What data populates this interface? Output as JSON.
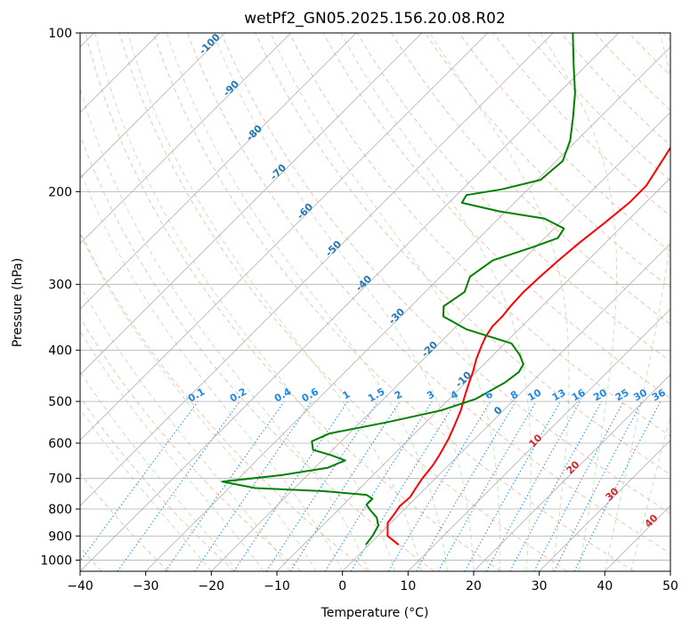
{
  "chart_data": {
    "type": "line",
    "title": "wetPf2_GN05.2025.156.20.08.R02",
    "xlabel": "Temperature (°C)",
    "ylabel": "Pressure (hPa)",
    "xlim": [
      -40,
      50
    ],
    "ylim": [
      1050,
      100
    ],
    "y_scale": "log",
    "grid": true,
    "x_ticks": [
      -40,
      -30,
      -20,
      -10,
      0,
      10,
      20,
      30,
      40,
      50
    ],
    "y_ticks": [
      100,
      200,
      300,
      400,
      500,
      600,
      700,
      800,
      900,
      1000
    ],
    "series": [
      {
        "name": "",
        "color": "#ff0000",
        "points": [
          [
            4.5,
            935
          ],
          [
            1.5,
            900
          ],
          [
            -0.5,
            850
          ],
          [
            -0.8,
            820
          ],
          [
            -1.2,
            790
          ],
          [
            -1.0,
            760
          ],
          [
            -1.5,
            730
          ],
          [
            -2.0,
            700
          ],
          [
            -2.4,
            660
          ],
          [
            -3.0,
            630
          ],
          [
            -4.0,
            590
          ],
          [
            -5.0,
            560
          ],
          [
            -6.5,
            520
          ],
          [
            -8.0,
            490
          ],
          [
            -9.5,
            460
          ],
          [
            -10.5,
            440
          ],
          [
            -12.0,
            415
          ],
          [
            -13.2,
            392
          ],
          [
            -14.0,
            376
          ],
          [
            -14.5,
            360
          ],
          [
            -14.5,
            345
          ],
          [
            -14.8,
            330
          ],
          [
            -15.0,
            310
          ],
          [
            -14.8,
            290
          ],
          [
            -14.5,
            270
          ],
          [
            -14.0,
            250
          ],
          [
            -13.2,
            230
          ],
          [
            -12.5,
            210
          ],
          [
            -12.5,
            195
          ],
          [
            -13.5,
            180
          ],
          [
            -15.0,
            160
          ],
          [
            -16.5,
            140
          ],
          [
            -18.5,
            125
          ],
          [
            -22.0,
            113
          ],
          [
            -26.0,
            100
          ]
        ]
      },
      {
        "name": "",
        "color": "#008000",
        "points": [
          [
            -0.5,
            935
          ],
          [
            -0.8,
            900
          ],
          [
            -1.5,
            860
          ],
          [
            -3.0,
            830
          ],
          [
            -5.0,
            805
          ],
          [
            -6.5,
            785
          ],
          [
            -6.5,
            765
          ],
          [
            -8.0,
            752
          ],
          [
            -15.0,
            740
          ],
          [
            -26.0,
            730
          ],
          [
            -32.0,
            710
          ],
          [
            -24.0,
            690
          ],
          [
            -18.0,
            668
          ],
          [
            -16.5,
            647
          ],
          [
            -19.5,
            632
          ],
          [
            -23.0,
            618
          ],
          [
            -24.5,
            595
          ],
          [
            -23.0,
            575
          ],
          [
            -16.0,
            548
          ],
          [
            -9.5,
            520
          ],
          [
            -6.0,
            495
          ],
          [
            -4.0,
            460
          ],
          [
            -3.5,
            440
          ],
          [
            -4.0,
            425
          ],
          [
            -6.0,
            408
          ],
          [
            -9.0,
            388
          ],
          [
            -18.0,
            365
          ],
          [
            -23.5,
            345
          ],
          [
            -25.0,
            330
          ],
          [
            -24.0,
            310
          ],
          [
            -25.5,
            290
          ],
          [
            -24.5,
            270
          ],
          [
            -20.5,
            255
          ],
          [
            -18.0,
            245
          ],
          [
            -18.5,
            235
          ],
          [
            -23.0,
            225
          ],
          [
            -31.0,
            218
          ],
          [
            -38.0,
            210
          ],
          [
            -38.5,
            203
          ],
          [
            -34.0,
            198
          ],
          [
            -29.5,
            190
          ],
          [
            -29.0,
            175
          ],
          [
            -31.0,
            160
          ],
          [
            -34.0,
            145
          ],
          [
            -37.5,
            130
          ],
          [
            -42.0,
            115
          ],
          [
            -47.0,
            100
          ]
        ]
      }
    ],
    "mixing_ratio_labels": [
      "0.1",
      "0.2",
      "0.4",
      "0.6",
      "1",
      "1.5",
      "2",
      "3",
      "4",
      "6",
      "8",
      "10",
      "13",
      "16",
      "20",
      "25",
      "30",
      "36"
    ],
    "dry_adiabat_labels": [
      "-100",
      "-90",
      "-80",
      "-70",
      "-60",
      "-50",
      "-40",
      "-30",
      "-20",
      "-10",
      "0"
    ],
    "moist_adiabat_labels": [
      "10",
      "20",
      "30",
      "40"
    ],
    "colors": {
      "skewed_isotherm": "#b0b0b0",
      "dry_adiabat": "#f4a582",
      "moist_adiabat": "#a6d4a0",
      "mixing_ratio": "#1e88e5",
      "grid": "#b0b0b0"
    }
  }
}
